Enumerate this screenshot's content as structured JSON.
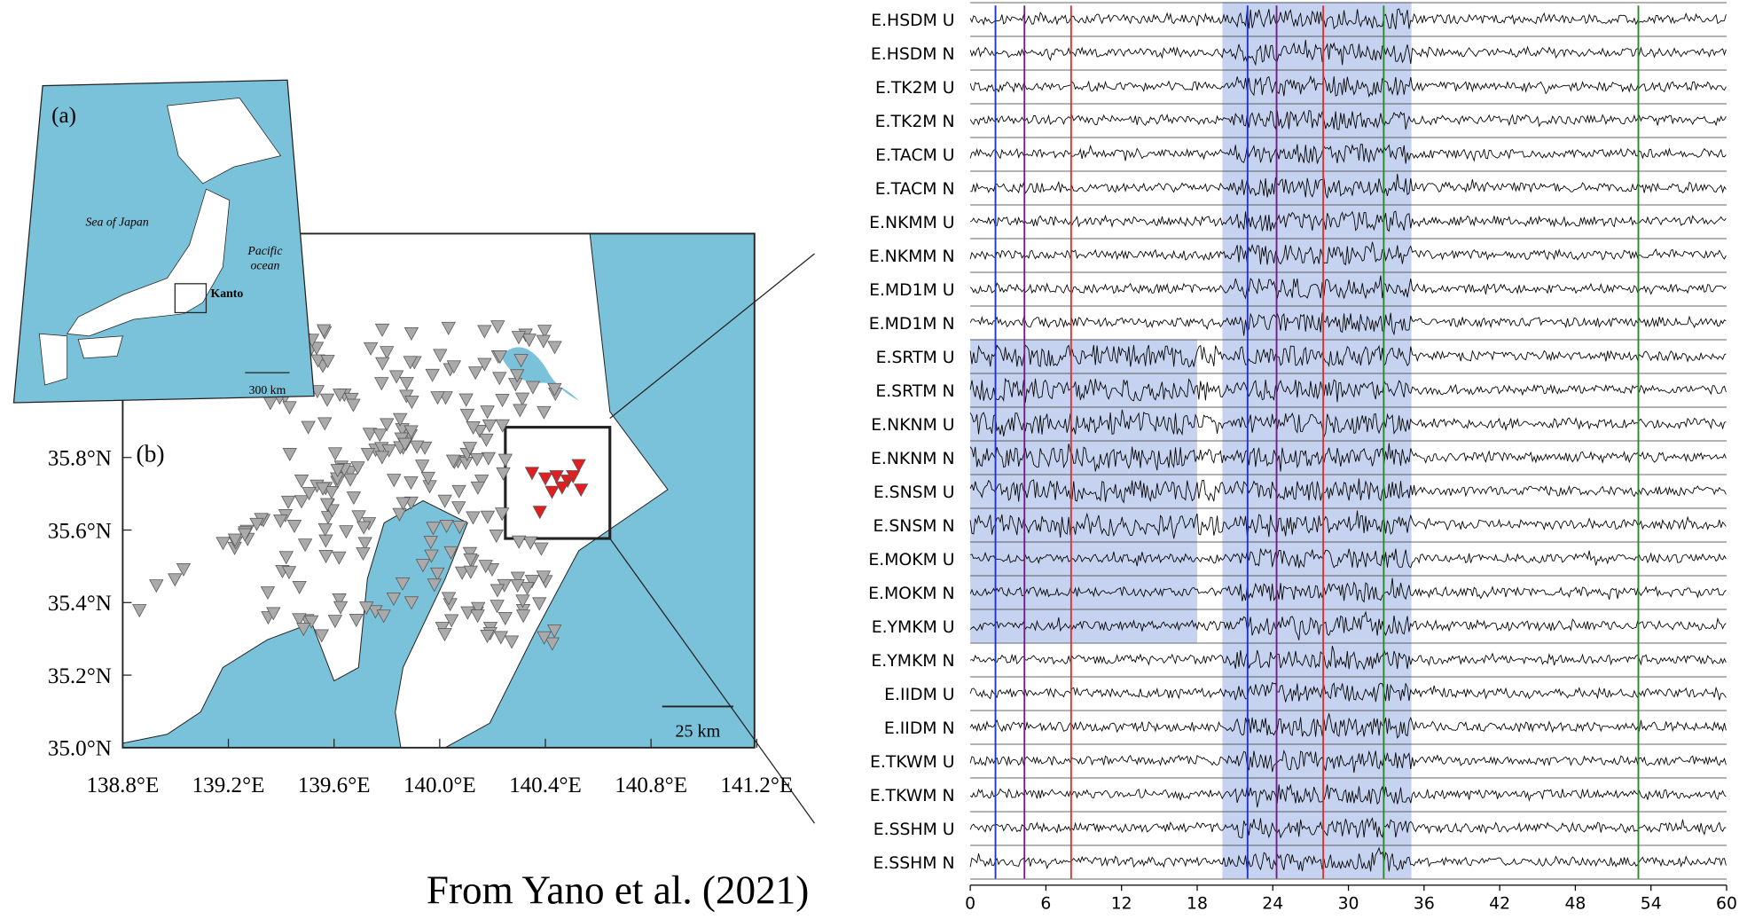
{
  "map": {
    "inset": {
      "label": "(a)",
      "sea": "Sea of Japan",
      "ocean": "Pacific\nocean",
      "region": "Kanto",
      "scale": "300 km"
    },
    "main": {
      "label": "(b)",
      "scale": "25 km",
      "lat_ticks": [
        "35.0°N",
        "35.2°N",
        "35.4°N",
        "35.6°N",
        "35.8°N"
      ],
      "lon_ticks": [
        "138.8°E",
        "139.2°E",
        "139.6°E",
        "140.0°E",
        "140.4°E",
        "140.8°E",
        "141.2°E"
      ]
    }
  },
  "credit": "From Yano et al. (2021)",
  "seismogram": {
    "stations": [
      "E.HSDM U",
      "E.HSDM N",
      "E.TK2M U",
      "E.TK2M N",
      "E.TACM U",
      "E.TACM N",
      "E.NKMM U",
      "E.NKMM N",
      "E.MD1M U",
      "E.MD1M N",
      "E.SRTM U",
      "E.SRTM N",
      "E.NKNM U",
      "E.NKNM N",
      "E.SNSM U",
      "E.SNSM N",
      "E.MOKM U",
      "E.MOKM N",
      "E.YMKM U",
      "E.YMKM N",
      "E.IIDM U",
      "E.IIDM N",
      "E.TKWM U",
      "E.TKWM N",
      "E.SSHM U",
      "E.SSHM N"
    ],
    "xlim": [
      0,
      60
    ],
    "xticks": [
      0,
      6,
      12,
      18,
      24,
      30,
      36,
      42,
      48,
      54,
      60
    ],
    "picks": [
      {
        "time": 2,
        "color": "#2233cc"
      },
      {
        "time": 4.3,
        "color": "#7a1a8a"
      },
      {
        "time": 8,
        "color": "#e03030"
      },
      {
        "time": 22,
        "color": "#2233cc"
      },
      {
        "time": 24.3,
        "color": "#7a1a8a"
      },
      {
        "time": 28,
        "color": "#e03030"
      },
      {
        "time": 32.8,
        "color": "#2a8a2a"
      },
      {
        "time": 53,
        "color": "#2a8a2a"
      }
    ],
    "windows": [
      {
        "start": 20,
        "end": 35,
        "first_row": 0,
        "last_row": 25
      },
      {
        "start": 0,
        "end": 18,
        "first_row": 10,
        "last_row": 18
      }
    ]
  }
}
